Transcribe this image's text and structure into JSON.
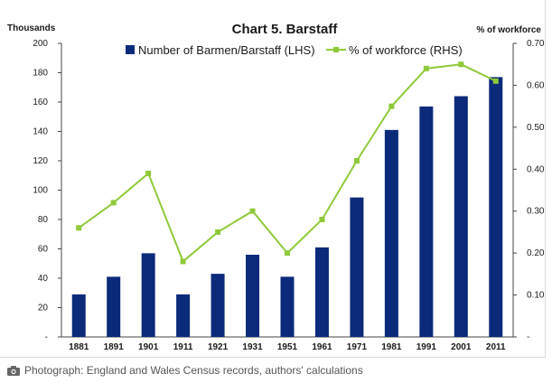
{
  "chart_data": {
    "type": "bar",
    "title": "Chart 5. Barstaff",
    "left_axis_label": "Thousands",
    "right_axis_label": "% of workforce",
    "categories": [
      "1881",
      "1891",
      "1901",
      "1911",
      "1921",
      "1931",
      "1951",
      "1961",
      "1971",
      "1981",
      "1991",
      "2001",
      "2011"
    ],
    "series": [
      {
        "name": "Number of Barmen/Barstaff (LHS)",
        "kind": "bar",
        "axis": "left",
        "color": "#0b2a7a",
        "values": [
          29,
          41,
          57,
          29,
          43,
          56,
          41,
          61,
          95,
          141,
          157,
          164,
          177
        ]
      },
      {
        "name": "% of workforce (RHS)",
        "kind": "line",
        "axis": "right",
        "color": "#8fc93a",
        "values": [
          0.26,
          0.32,
          0.39,
          0.18,
          0.25,
          0.3,
          0.2,
          0.28,
          0.42,
          0.55,
          0.64,
          0.65,
          0.61
        ]
      }
    ],
    "left_axis": {
      "min": 0,
      "max": 200,
      "ticks": [
        "-",
        "20",
        "40",
        "60",
        "80",
        "100",
        "120",
        "140",
        "160",
        "180",
        "200"
      ]
    },
    "right_axis": {
      "min": 0,
      "max": 0.7,
      "ticks": [
        "-",
        "0.10",
        "0.20",
        "0.30",
        "0.40",
        "0.50",
        "0.60",
        "0.70"
      ]
    },
    "legend_position": "top",
    "grid": false
  },
  "caption": {
    "icon": "camera-icon",
    "text": "Photograph: England and Wales Census records, authors' calculations"
  }
}
